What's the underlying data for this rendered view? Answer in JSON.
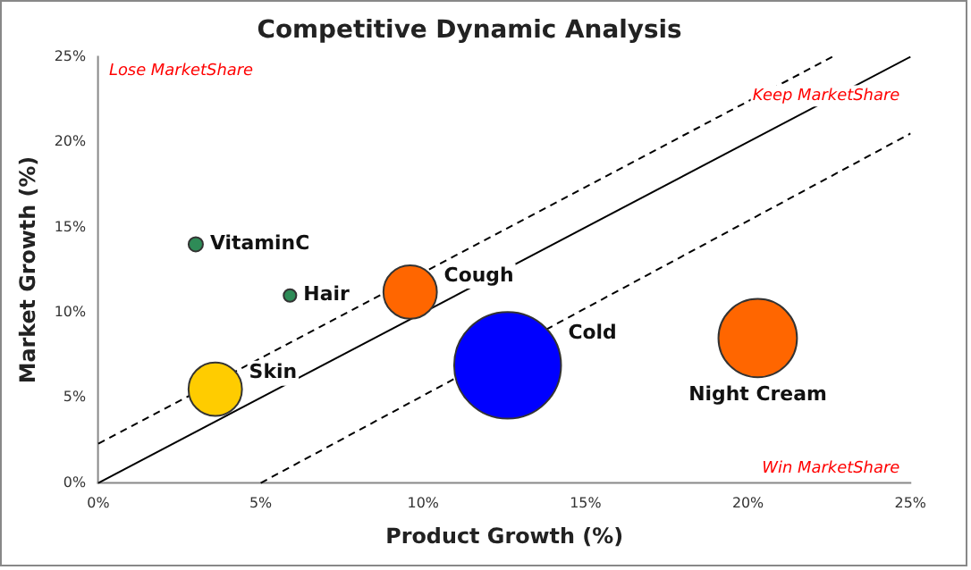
{
  "chart_data": {
    "type": "bubble",
    "title": "Competitive Dynamic Analysis",
    "xlabel": "Product Growth (%)",
    "ylabel": "Market Growth (%)",
    "xlim": [
      0,
      25
    ],
    "ylim": [
      0,
      25
    ],
    "xticks": [
      {
        "value": 0,
        "label": "0%"
      },
      {
        "value": 5,
        "label": "5%"
      },
      {
        "value": 10,
        "label": "10%"
      },
      {
        "value": 15,
        "label": "15%"
      },
      {
        "value": 20,
        "label": "20%"
      },
      {
        "value": 25,
        "label": "25%"
      }
    ],
    "yticks": [
      {
        "value": 0,
        "label": "0%"
      },
      {
        "value": 5,
        "label": "5%"
      },
      {
        "value": 10,
        "label": "10%"
      },
      {
        "value": 15,
        "label": "15%"
      },
      {
        "value": 20,
        "label": "20%"
      },
      {
        "value": 25,
        "label": "25%"
      }
    ],
    "grid": false,
    "legend": false,
    "annotations": [
      "Lose MarketShare",
      "Keep MarketShare",
      "Win MarketShare"
    ],
    "series": [
      {
        "name": "VitaminC",
        "color": "#2e8b57",
        "x": [
          3.0
        ],
        "values": [
          14
        ],
        "sizes": [
          0.018
        ]
      },
      {
        "name": "Hair",
        "color": "#2e8b57",
        "x": [
          5.9
        ],
        "values": [
          11
        ],
        "sizes": [
          0.014
        ]
      },
      {
        "name": "Cough",
        "color": "#ff6600",
        "x": [
          9.6
        ],
        "values": [
          11.2
        ],
        "sizes": [
          0.25
        ]
      },
      {
        "name": "Skin",
        "color": "#ffcc00",
        "x": [
          3.6
        ],
        "values": [
          5.5
        ],
        "sizes": [
          0.25
        ]
      },
      {
        "name": "Cold",
        "color": "#0000ff",
        "x": [
          12.6
        ],
        "values": [
          6.9
        ],
        "sizes": [
          1
        ]
      },
      {
        "name": "Night Cream",
        "color": "#ff6600",
        "x": [
          20.3
        ],
        "values": [
          8.5
        ],
        "sizes": [
          0.54
        ]
      },
      {
        "type": "line",
        "color": "#000000",
        "line_style": "solid",
        "marker": "none",
        "x": [
          0,
          25
        ],
        "values": [
          0,
          25
        ]
      },
      {
        "type": "line",
        "color": "#000000",
        "line_style": "dashed",
        "marker": "none",
        "x": [
          0,
          22.6
        ],
        "values": [
          2.3,
          25
        ]
      },
      {
        "type": "line",
        "color": "#000000",
        "line_style": "dashed",
        "marker": "none",
        "x": [
          5,
          25
        ],
        "values": [
          0,
          20.5
        ]
      }
    ]
  }
}
